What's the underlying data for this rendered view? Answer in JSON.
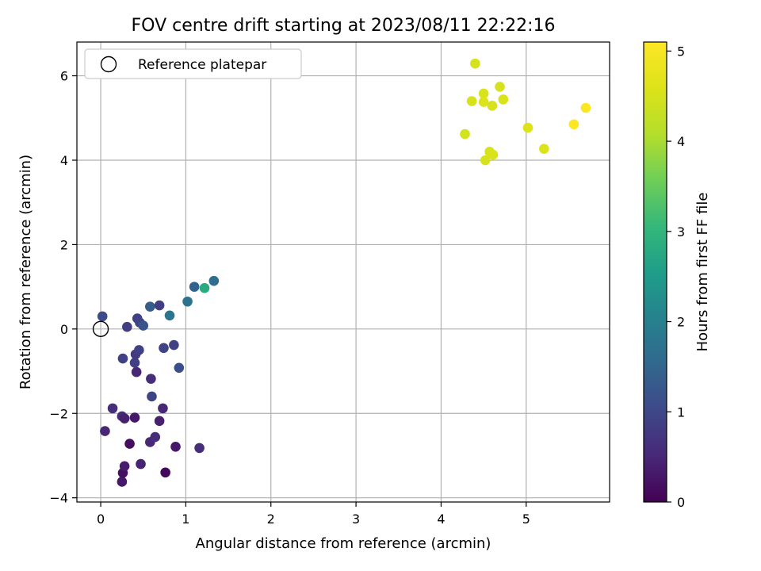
{
  "chart_data": {
    "type": "scatter",
    "title": "FOV centre drift starting at 2023/08/11 22:22:16",
    "xlabel": "Angular distance from reference (arcmin)",
    "ylabel": "Rotation from reference (arcmin)",
    "xlim": [
      -0.28,
      5.98
    ],
    "ylim": [
      -4.1,
      6.8
    ],
    "xticks": [
      0,
      1,
      2,
      3,
      4,
      5
    ],
    "yticks": [
      -4,
      -2,
      0,
      2,
      4,
      6
    ],
    "grid": true,
    "legend": {
      "position": "top-left",
      "entries": [
        "Reference platepar"
      ]
    },
    "reference_point": {
      "x": 0,
      "y": 0,
      "marker": "open-circle",
      "label": "Reference platepar"
    },
    "colorbar": {
      "label": "Hours from first FF file",
      "min": 0,
      "max": 5.1,
      "ticks": [
        0,
        1,
        2,
        3,
        4,
        5
      ],
      "colormap": "viridis"
    },
    "points": [
      {
        "x": 0.25,
        "y": -3.62,
        "c": 0.3
      },
      {
        "x": 0.26,
        "y": -3.41,
        "c": 0.2
      },
      {
        "x": 0.28,
        "y": -3.25,
        "c": 0.35
      },
      {
        "x": 0.47,
        "y": -3.2,
        "c": 0.45
      },
      {
        "x": 0.76,
        "y": -3.4,
        "c": 0.1
      },
      {
        "x": 0.34,
        "y": -2.72,
        "c": 0.15
      },
      {
        "x": 0.58,
        "y": -2.68,
        "c": 0.5
      },
      {
        "x": 0.64,
        "y": -2.56,
        "c": 0.6
      },
      {
        "x": 0.88,
        "y": -2.79,
        "c": 0.3
      },
      {
        "x": 1.16,
        "y": -2.82,
        "c": 0.6
      },
      {
        "x": 0.05,
        "y": -2.42,
        "c": 0.5
      },
      {
        "x": 0.25,
        "y": -2.07,
        "c": 0.55
      },
      {
        "x": 0.28,
        "y": -2.12,
        "c": 0.4
      },
      {
        "x": 0.4,
        "y": -2.1,
        "c": 0.3
      },
      {
        "x": 0.14,
        "y": -1.88,
        "c": 0.6
      },
      {
        "x": 0.69,
        "y": -2.18,
        "c": 0.4
      },
      {
        "x": 0.73,
        "y": -1.88,
        "c": 0.5
      },
      {
        "x": 0.6,
        "y": -1.6,
        "c": 0.95
      },
      {
        "x": 0.59,
        "y": -1.18,
        "c": 0.6
      },
      {
        "x": 0.42,
        "y": -1.02,
        "c": 0.5
      },
      {
        "x": 0.4,
        "y": -0.8,
        "c": 0.85
      },
      {
        "x": 0.26,
        "y": -0.7,
        "c": 0.9
      },
      {
        "x": 0.41,
        "y": -0.6,
        "c": 0.8
      },
      {
        "x": 0.45,
        "y": -0.5,
        "c": 0.9
      },
      {
        "x": 0.74,
        "y": -0.45,
        "c": 0.95
      },
      {
        "x": 0.86,
        "y": -0.38,
        "c": 0.9
      },
      {
        "x": 0.92,
        "y": -0.92,
        "c": 1.1
      },
      {
        "x": 0.02,
        "y": 0.3,
        "c": 1.05
      },
      {
        "x": 0.31,
        "y": 0.05,
        "c": 0.85
      },
      {
        "x": 0.43,
        "y": 0.25,
        "c": 0.9
      },
      {
        "x": 0.46,
        "y": 0.15,
        "c": 0.95
      },
      {
        "x": 0.5,
        "y": 0.08,
        "c": 1.2
      },
      {
        "x": 0.58,
        "y": 0.53,
        "c": 1.35
      },
      {
        "x": 0.69,
        "y": 0.56,
        "c": 0.85
      },
      {
        "x": 0.81,
        "y": 0.32,
        "c": 1.8
      },
      {
        "x": 1.02,
        "y": 0.65,
        "c": 1.75
      },
      {
        "x": 1.1,
        "y": 1.0,
        "c": 1.45
      },
      {
        "x": 1.22,
        "y": 0.97,
        "c": 2.8
      },
      {
        "x": 1.33,
        "y": 1.14,
        "c": 1.65
      },
      {
        "x": 4.4,
        "y": 6.29,
        "c": 4.5
      },
      {
        "x": 4.36,
        "y": 5.4,
        "c": 4.5
      },
      {
        "x": 4.5,
        "y": 5.58,
        "c": 4.55
      },
      {
        "x": 4.5,
        "y": 5.38,
        "c": 4.6
      },
      {
        "x": 4.6,
        "y": 5.29,
        "c": 4.5
      },
      {
        "x": 4.69,
        "y": 5.74,
        "c": 4.5
      },
      {
        "x": 4.73,
        "y": 5.44,
        "c": 4.55
      },
      {
        "x": 5.7,
        "y": 5.24,
        "c": 5.05
      },
      {
        "x": 5.56,
        "y": 4.85,
        "c": 5.1
      },
      {
        "x": 5.02,
        "y": 4.77,
        "c": 4.6
      },
      {
        "x": 4.28,
        "y": 4.62,
        "c": 4.45
      },
      {
        "x": 4.57,
        "y": 4.2,
        "c": 4.5
      },
      {
        "x": 4.61,
        "y": 4.13,
        "c": 4.55
      },
      {
        "x": 4.52,
        "y": 4.0,
        "c": 4.5
      },
      {
        "x": 5.21,
        "y": 4.27,
        "c": 4.6
      }
    ]
  }
}
